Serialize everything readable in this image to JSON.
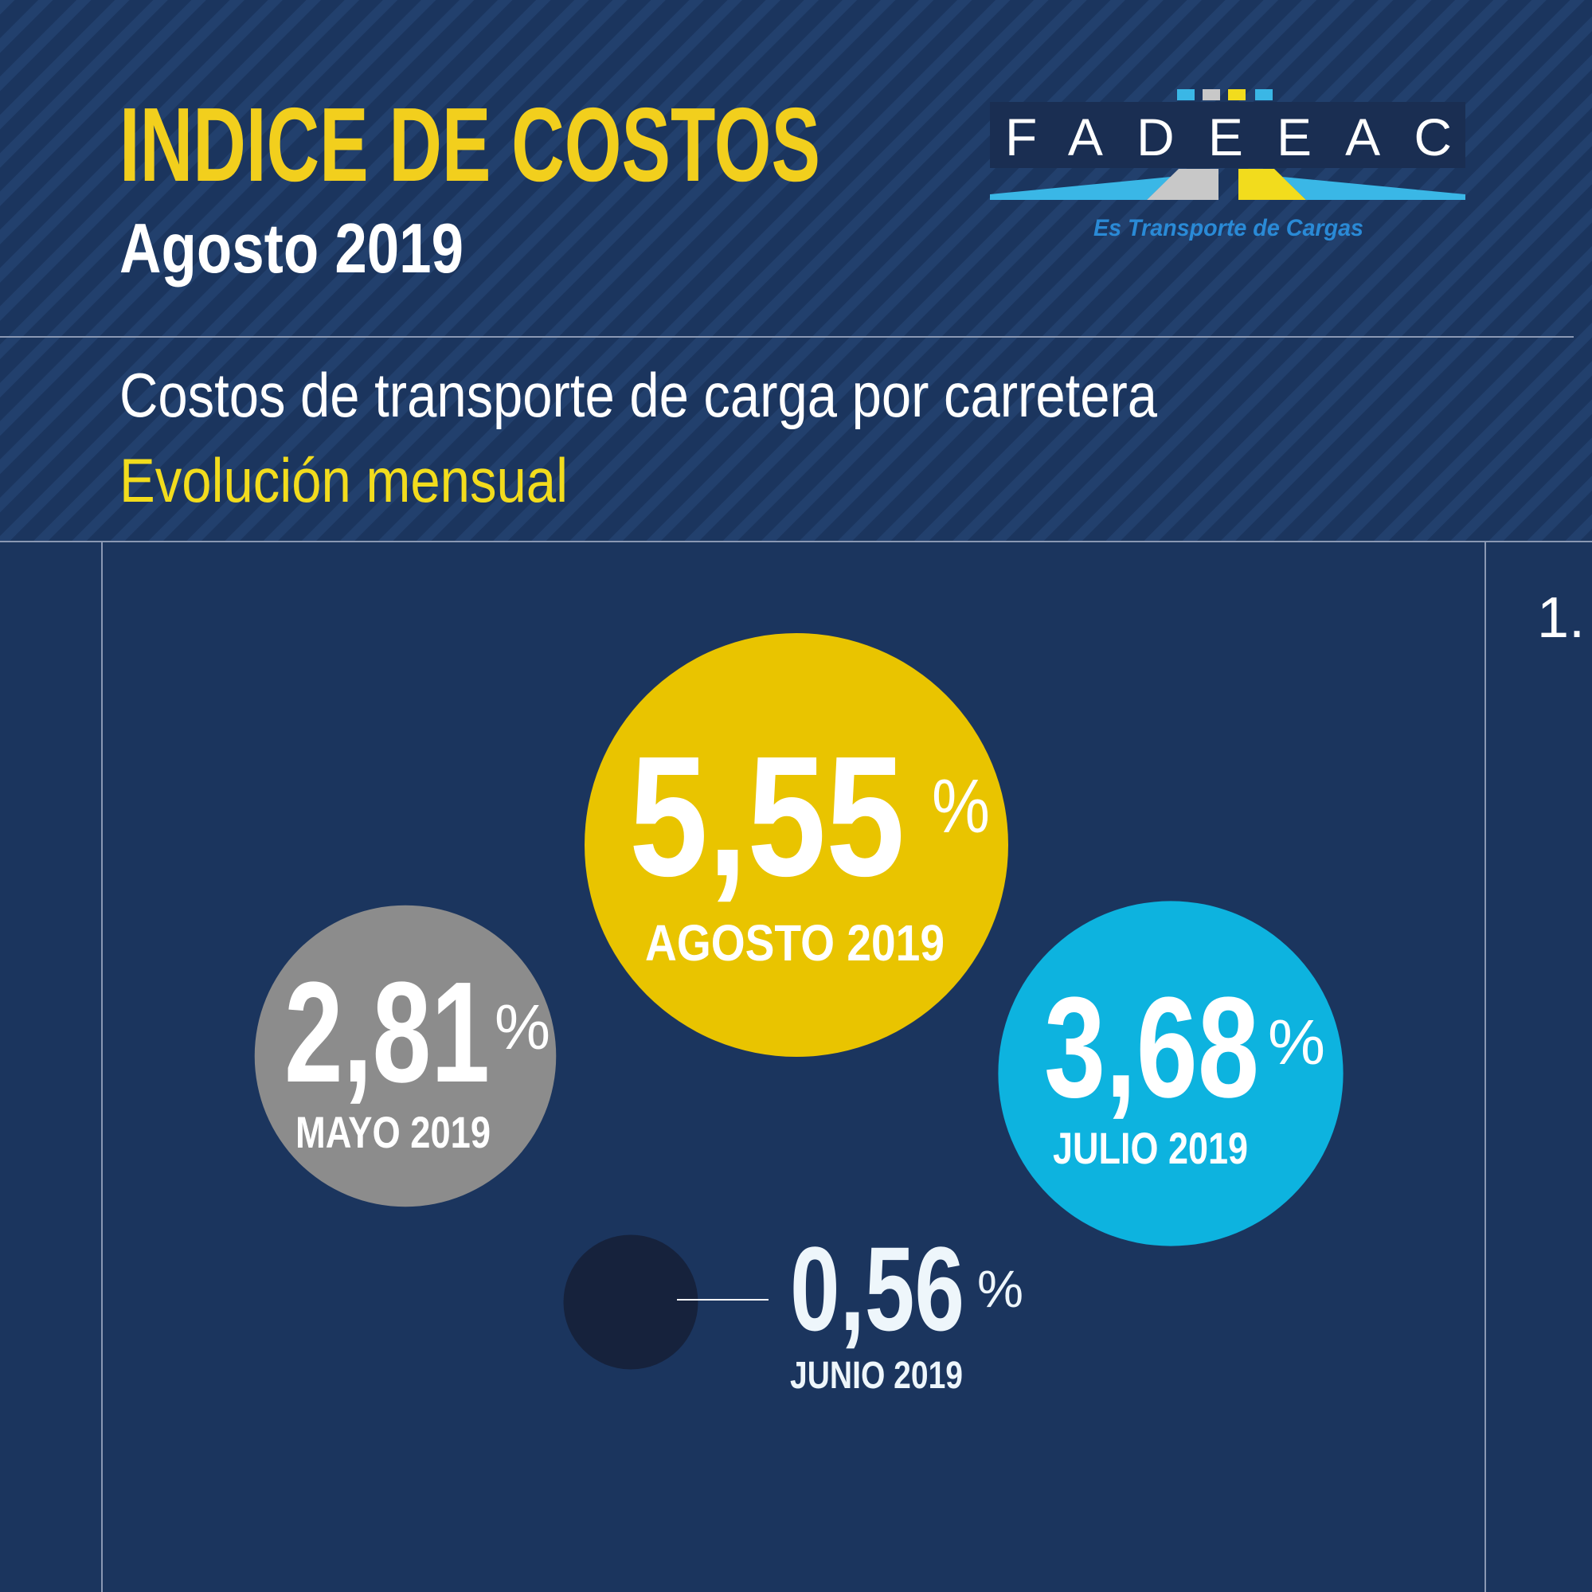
{
  "header": {
    "title": "INDICE DE COSTOS",
    "subtitle": "Agosto 2019",
    "description": "Costos de transporte de carga por carretera",
    "highlight": "Evolución mensual",
    "page_number": "1."
  },
  "logo": {
    "name": "FADEEAC",
    "tagline": "Es Transporte de Cargas"
  },
  "chart_data": {
    "type": "bubble",
    "categories": [
      "MAYO 2019",
      "JUNIO 2019",
      "JULIO 2019",
      "AGOSTO 2019"
    ],
    "values": [
      2.81,
      0.56,
      3.68,
      5.55
    ],
    "value_labels": [
      "2,81",
      "0,56",
      "3,68",
      "5,55"
    ],
    "unit": "%",
    "colors": [
      "#8c8c8c",
      "#16223c",
      "#0db3df",
      "#e9c400"
    ]
  }
}
